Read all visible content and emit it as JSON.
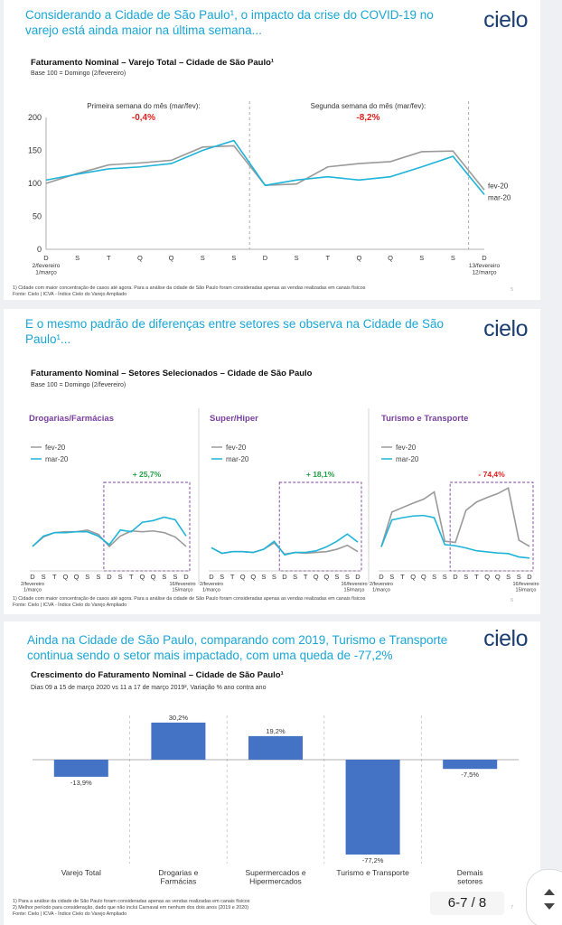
{
  "colors": {
    "feb": "#9a9a9a",
    "mar": "#1fb4d8",
    "bar": "#4472c4",
    "up": "#22a046",
    "down": "#e02020",
    "purple": "#7b3fa0",
    "heading": "#19a6d6",
    "logo": "#1b3f72"
  },
  "logo": "cielo",
  "pager": "6-7 / 8",
  "slide1": {
    "heading": "Considerando a Cidade de São Paulo¹, o impacto da crise do COVID-19 no varejo está ainda maior na última semana...",
    "footnote1": "1)   Cidade com maior concentração de casos até agora. Para a análise da cidade de São Paulo foram consideradas apenas as vendas realizadas em canais físicos",
    "footnote2": "Fonte: Cielo | ICVA - Índice Cielo do Varejo Ampliado",
    "page": "5"
  },
  "slide2": {
    "heading": "E o mesmo padrão de diferenças entre setores se observa na Cidade de São Paulo¹...",
    "footnote1": "1)   Cidade com maior concentração de casos até agora. Para a análise da cidade de São Paulo foram consideradas apenas as vendas realizadas em canais físicos",
    "footnote2": "Fonte: Cielo | ICVA - Índice Cielo do Varejo Ampliado",
    "page": "6"
  },
  "slide3": {
    "heading": "Ainda na Cidade de São Paulo, comparando com 2019, Turismo e Transporte continua sendo o setor mais impactado, com uma queda de -77,2%",
    "footnote1": "1)   Para a análise da cidade de São Paulo foram consideradas apenas as vendas realizadas em canais físicos",
    "footnote2": "2)   Melhor período para consideração, dado que não inclui Carnaval em nenhum dos dois anos (2019 e 2020)",
    "footnote3": "Fonte: Cielo | ICVA - Índice Cielo do Varejo Ampliado",
    "page": "7"
  },
  "chart_data": [
    {
      "type": "line",
      "title": "Faturamento Nominal – Varejo Total – Cidade de São Paulo¹",
      "subtitle": "Base 100 = Domingo (2/fevereiro)",
      "x": [
        "D",
        "S",
        "T",
        "Q",
        "Q",
        "S",
        "S",
        "D",
        "S",
        "T",
        "Q",
        "Q",
        "S",
        "S",
        "D"
      ],
      "x_edge_labels": {
        "start": "2/fevereiro\n1/março",
        "end": "13/fevereiro\n12/março"
      },
      "ylim": [
        0,
        200
      ],
      "yticks": [
        0,
        50,
        100,
        150,
        200
      ],
      "series": [
        {
          "name": "fev-20",
          "values": [
            100,
            115,
            128,
            131,
            135,
            155,
            157,
            97,
            99,
            125,
            130,
            133,
            148,
            149,
            90
          ]
        },
        {
          "name": "mar-20",
          "values": [
            105,
            114,
            122,
            125,
            130,
            150,
            165,
            97,
            105,
            110,
            105,
            110,
            125,
            141,
            83
          ]
        }
      ],
      "annotations": [
        {
          "text": "Primeira semana do mês (mar/fev):",
          "value": "-0,4%"
        },
        {
          "text": "Segunda semana do mês (mar/fev):",
          "value": "-8,2%"
        }
      ]
    },
    {
      "type": "line",
      "title": "Faturamento Nominal – Setores Selecionados – Cidade de São Paulo",
      "subtitle": "Base 100 = Domingo (2/fevereiro)",
      "panels": [
        {
          "name": "Drogarias/Farmácias",
          "change": "+ 25,7%",
          "direction": "up",
          "x": [
            "D",
            "S",
            "T",
            "Q",
            "Q",
            "S",
            "S",
            "D",
            "S",
            "T",
            "Q",
            "Q",
            "S",
            "S",
            "D"
          ],
          "x_edge_labels": {
            "start": "2/fevereiro\n1/março",
            "end": "16/fevereiro\n15/março"
          },
          "series": [
            {
              "name": "fev-20",
              "values": [
                100,
                111,
                116,
                117,
                117,
                119,
                114,
                100,
                112,
                118,
                117,
                118,
                116,
                111,
                100
              ]
            },
            {
              "name": "mar-20",
              "values": [
                100,
                112,
                116,
                116,
                117,
                117,
                112,
                102,
                119,
                117,
                128,
                130,
                134,
                131,
                112
              ]
            }
          ]
        },
        {
          "name": "Super/Hiper",
          "change": "+ 18,1%",
          "direction": "up",
          "x": [
            "D",
            "S",
            "T",
            "Q",
            "Q",
            "S",
            "S",
            "D",
            "S",
            "T",
            "Q",
            "Q",
            "S",
            "S",
            "D"
          ],
          "x_edge_labels": {
            "start": "2/fevereiro\n1/março",
            "end": "16/fevereiro\n15/março"
          },
          "series": [
            {
              "name": "fev-20",
              "values": [
                100,
                93,
                95,
                95,
                94,
                98,
                106,
                92,
                94,
                93,
                94,
                95,
                98,
                103,
                95
              ]
            },
            {
              "name": "mar-20",
              "values": [
                100,
                93,
                95,
                95,
                94,
                98,
                108,
                91,
                94,
                94,
                96,
                101,
                108,
                117,
                107
              ]
            }
          ]
        },
        {
          "name": "Turismo e Transporte",
          "change": "- 74,4%",
          "direction": "down",
          "x": [
            "D",
            "S",
            "T",
            "Q",
            "Q",
            "S",
            "S",
            "D",
            "S",
            "T",
            "Q",
            "Q",
            "S",
            "S",
            "D"
          ],
          "x_edge_labels": {
            "start": "2/fevereiro\n1/março",
            "end": "16/fevereiro\n15/março"
          },
          "series": [
            {
              "name": "fev-20",
              "values": [
                100,
                162,
                170,
                178,
                185,
                198,
                110,
                108,
                165,
                180,
                188,
                195,
                205,
                112,
                101
              ]
            },
            {
              "name": "mar-20",
              "values": [
                100,
                148,
                152,
                155,
                156,
                152,
                104,
                102,
                98,
                93,
                91,
                89,
                88,
                82,
                80
              ]
            }
          ]
        }
      ]
    },
    {
      "type": "bar",
      "title": "Crescimento do Faturamento Nominal – Cidade de São Paulo¹",
      "subtitle": "Dias 09 a 15 de março 2020 vs 11 a 17 de março 2019², Variação % ano contra ano",
      "categories": [
        "Varejo Total",
        "Drogarias e\nFarmácias",
        "Supermercados e\nHipermercados",
        "Turismo e Transporte",
        "Demais\nsetores"
      ],
      "values": [
        -13.9,
        30.2,
        19.2,
        -77.2,
        -7.5
      ],
      "value_labels": [
        "-13,9%",
        "30,2%",
        "19,2%",
        "-77,2%",
        "-7,5%"
      ]
    }
  ]
}
